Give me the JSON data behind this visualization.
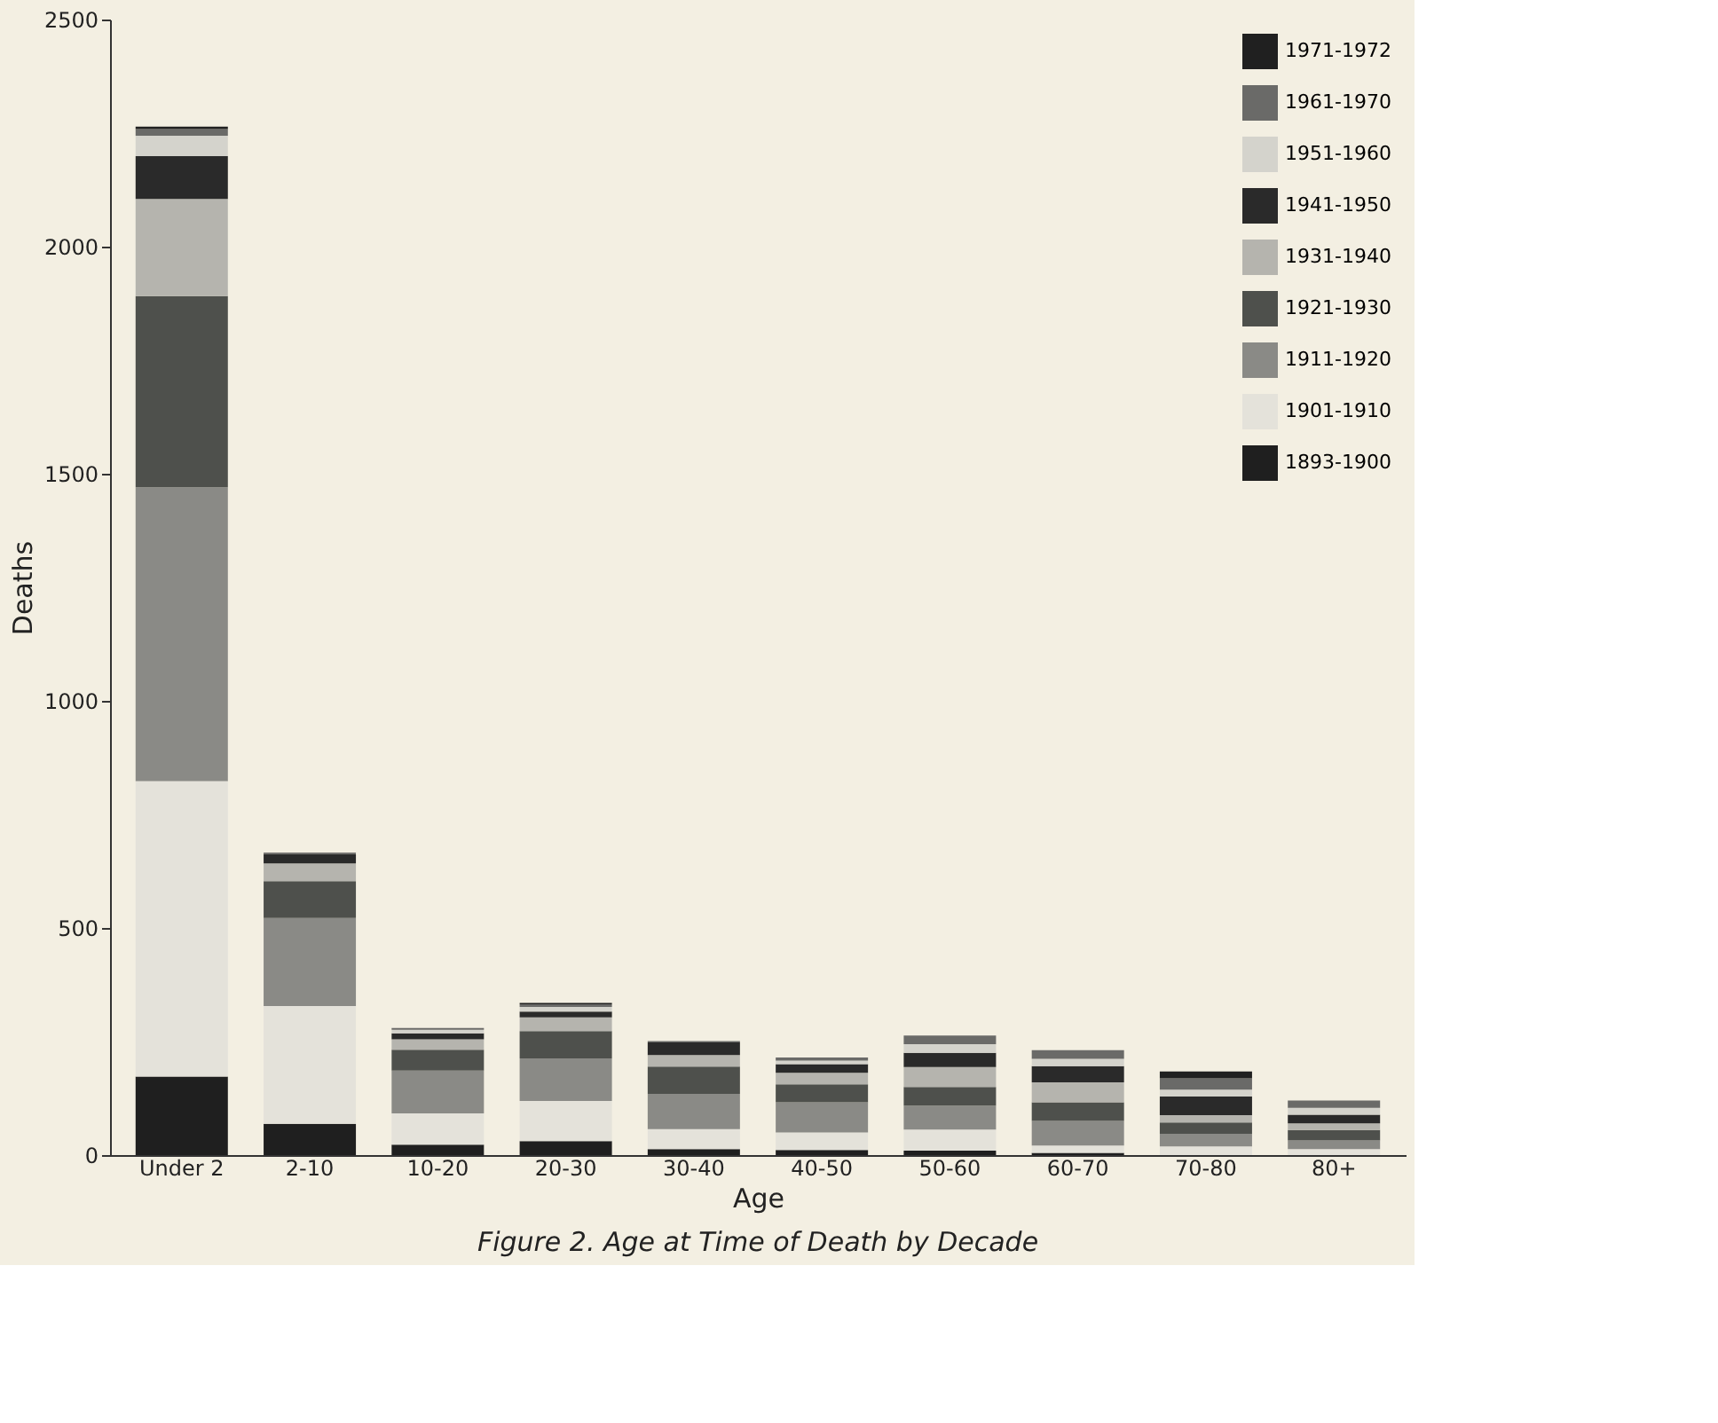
{
  "chart_data": {
    "type": "bar",
    "stacked": true,
    "title": "Figure 2.  Age at Time of Death by Decade",
    "xlabel": "Age",
    "ylabel": "Deaths",
    "categories": [
      "Under 2",
      "2-10",
      "10-20",
      "20-30",
      "30-40",
      "40-50",
      "50-60",
      "60-70",
      "70-80",
      "80+"
    ],
    "ylim": [
      0,
      2500
    ],
    "yticks": [
      0,
      500,
      1000,
      1500,
      2000,
      2500
    ],
    "grid": false,
    "legend": "top right",
    "series": [
      {
        "name": "1893-1900",
        "color": "#1f1f1f",
        "values": [
          173,
          69,
          23,
          31,
          13,
          11,
          10,
          5,
          null,
          null
        ]
      },
      {
        "name": "1901-1910",
        "color": "#e4e2da",
        "values": [
          650,
          259,
          69,
          88,
          44,
          39,
          46,
          16,
          19,
          13
        ]
      },
      {
        "name": "1911-1920",
        "color": "#8a8a86",
        "values": [
          647,
          194,
          94,
          94,
          78,
          66,
          53,
          54,
          28,
          19
        ]
      },
      {
        "name": "1921-1930",
        "color": "#4e504c",
        "values": [
          421,
          81,
          46,
          60,
          60,
          40,
          41,
          41,
          25,
          23
        ]
      },
      {
        "name": "1931-1940",
        "color": "#b5b4ae",
        "values": [
          214,
          39,
          23,
          30,
          25,
          25,
          44,
          44,
          16,
          15
        ]
      },
      {
        "name": "1941-1950",
        "color": "#2a2a2a",
        "values": [
          94,
          21,
          13,
          13,
          28,
          19,
          31,
          36,
          41,
          19
        ]
      },
      {
        "name": "1951-1960",
        "color": "#d4d3cc",
        "values": [
          45,
          null,
          8,
          10,
          null,
          8,
          19,
          16,
          15,
          15
        ]
      },
      {
        "name": "1961-1970",
        "color": "#6a6a68",
        "values": [
          15,
          3,
          4,
          6,
          3,
          7,
          19,
          19,
          25,
          16
        ]
      },
      {
        "name": "1971-1972",
        "color": "#202020",
        "values": [
          5,
          0,
          0,
          3,
          0,
          0,
          0,
          0,
          15,
          0
        ]
      }
    ]
  }
}
